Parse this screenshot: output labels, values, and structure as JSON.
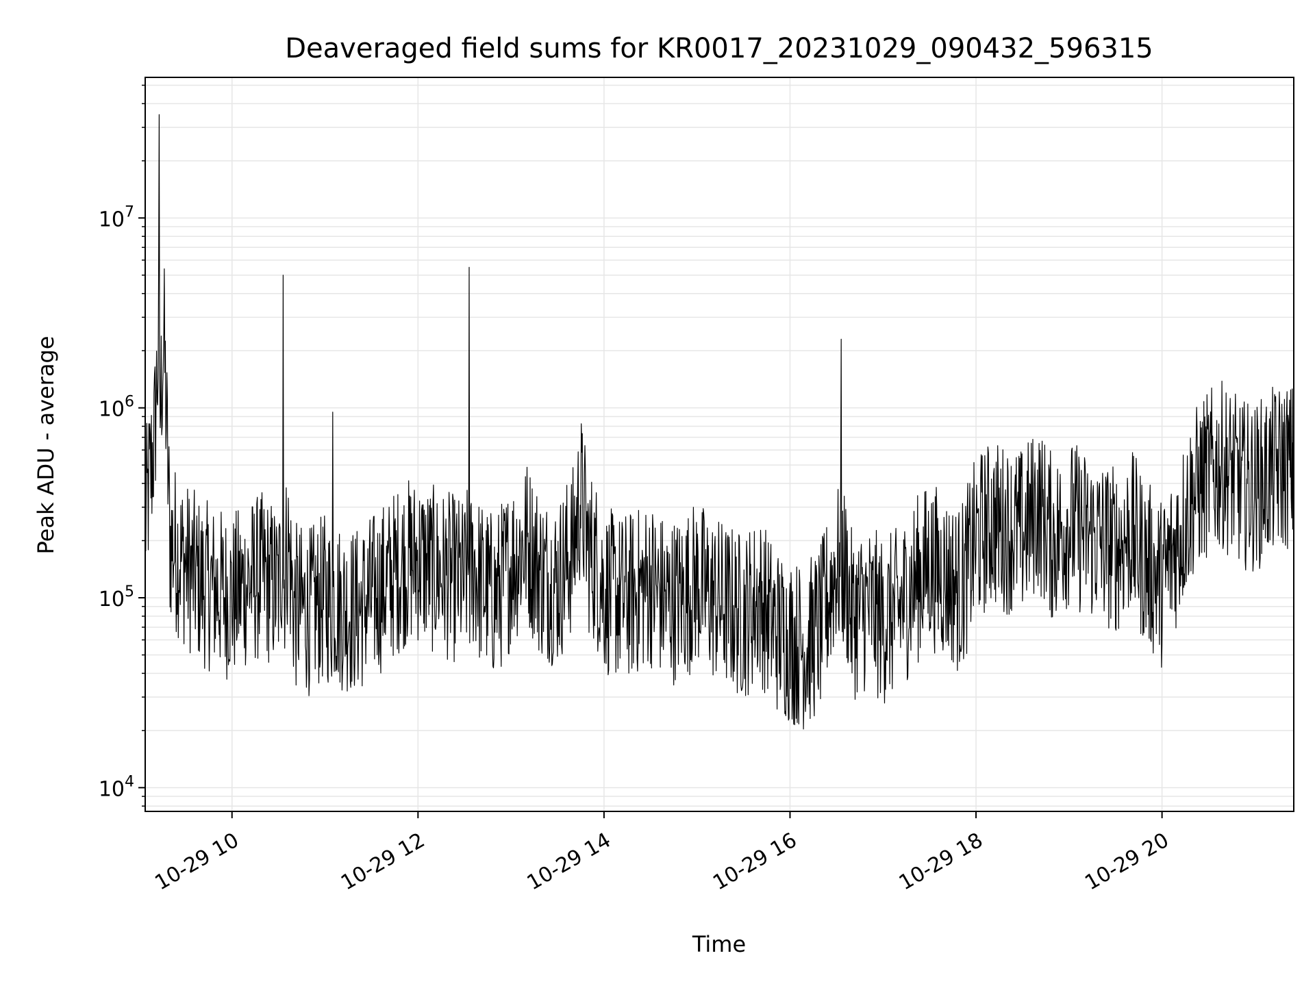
{
  "chart_data": {
    "type": "line",
    "title": "Deaveraged field sums for KR0017_20231029_090432_596315",
    "xlabel": "Time",
    "ylabel": "Peak ADU - average",
    "yscale": "log",
    "ylim": [
      7500,
      55000000
    ],
    "xlim": [
      "2023-10-29 09:04",
      "2023-10-29 21:25"
    ],
    "grid": true,
    "x_tick_labels": [
      "10-29 10",
      "10-29 12",
      "10-29 14",
      "10-29 16",
      "10-29 18",
      "10-29 20"
    ],
    "x_tick_times": [
      "2023-10-29 10:00",
      "2023-10-29 12:00",
      "2023-10-29 14:00",
      "2023-10-29 16:00",
      "2023-10-29 18:00",
      "2023-10-29 20:00"
    ],
    "y_tick_labels": [
      {
        "base": "10",
        "exp": "4",
        "value": 10000
      },
      {
        "base": "10",
        "exp": "5",
        "value": 100000
      },
      {
        "base": "10",
        "exp": "6",
        "value": 1000000
      },
      {
        "base": "10",
        "exp": "7",
        "value": 10000000
      }
    ],
    "line_color": "#000000",
    "grid_color": "#e6e6e6",
    "series": [
      {
        "x": [
          "09:04",
          "09:10",
          "09:13",
          "09:16",
          "09:20",
          "09:30",
          "09:40",
          "09:50",
          "10:00",
          "10:10",
          "10:20",
          "10:30",
          "10:33",
          "10:36",
          "10:40",
          "10:50",
          "11:00",
          "11:05",
          "11:10",
          "11:20",
          "11:30",
          "11:40",
          "11:50",
          "12:00",
          "12:10",
          "12:20",
          "12:30",
          "12:33",
          "12:36",
          "12:40",
          "12:50",
          "13:00",
          "13:10",
          "13:20",
          "13:30",
          "13:40",
          "13:45",
          "13:50",
          "13:55",
          "14:00",
          "14:10",
          "14:20",
          "14:30",
          "14:40",
          "14:50",
          "15:00",
          "15:10",
          "15:20",
          "15:30",
          "15:40",
          "15:50",
          "16:00",
          "16:10",
          "16:20",
          "16:30",
          "16:33",
          "16:36",
          "16:40",
          "16:50",
          "17:00",
          "17:10",
          "17:20",
          "17:30",
          "17:40",
          "17:50",
          "18:00",
          "18:10",
          "18:20",
          "18:30",
          "18:40",
          "18:50",
          "19:00",
          "19:10",
          "19:20",
          "19:30",
          "19:40",
          "19:50",
          "20:00",
          "20:10",
          "20:20",
          "20:30",
          "20:40",
          "20:50",
          "21:00",
          "21:10",
          "21:20",
          "21:25"
        ],
        "values": [
          250000,
          700000,
          35000000,
          2500000,
          200000,
          150000,
          120000,
          110000,
          100000,
          120000,
          130000,
          110000,
          5000000,
          200000,
          90000,
          85000,
          100000,
          950000,
          90000,
          85000,
          100000,
          120000,
          150000,
          160000,
          140000,
          130000,
          120000,
          5500000,
          150000,
          120000,
          100000,
          150000,
          200000,
          130000,
          120000,
          180000,
          350000,
          180000,
          150000,
          110000,
          100000,
          105000,
          120000,
          95000,
          100000,
          120000,
          100000,
          90000,
          80000,
          100000,
          70000,
          60000,
          55000,
          70000,
          150000,
          2300000,
          130000,
          80000,
          90000,
          75000,
          85000,
          120000,
          150000,
          130000,
          110000,
          200000,
          250000,
          230000,
          220000,
          300000,
          200000,
          250000,
          220000,
          200000,
          180000,
          220000,
          150000,
          120000,
          200000,
          350000,
          450000,
          500000,
          400000,
          380000,
          450000,
          500000,
          480000
        ]
      }
    ]
  }
}
